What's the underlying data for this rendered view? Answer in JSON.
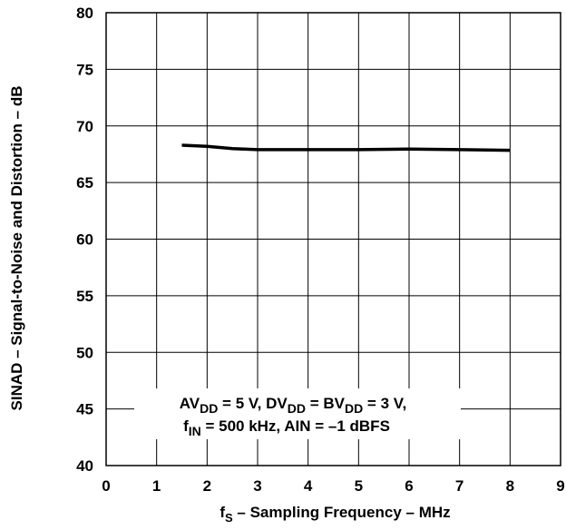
{
  "chart_data": {
    "type": "line",
    "title": "",
    "xlabel": {
      "main": "f",
      "sub": "S",
      "rest": " – Sampling Frequency – MHz"
    },
    "ylabel": "SINAD – Signal-to-Noise and Distortion – dB",
    "xlim": [
      0,
      9
    ],
    "ylim": [
      40,
      80
    ],
    "xticks": [
      "0",
      "1",
      "2",
      "3",
      "4",
      "5",
      "6",
      "7",
      "8",
      "9"
    ],
    "yticks": [
      "40",
      "45",
      "50",
      "55",
      "60",
      "65",
      "70",
      "75",
      "80"
    ],
    "grid": true,
    "series": [
      {
        "x": [
          1.5,
          2,
          2.5,
          3,
          4,
          5,
          6,
          7,
          8
        ],
        "y": [
          68.3,
          68.2,
          68.0,
          67.9,
          67.9,
          67.9,
          67.95,
          67.9,
          67.85
        ]
      }
    ],
    "annotation": {
      "line1": [
        {
          "t": "AV",
          "sub": false
        },
        {
          "t": "DD",
          "sub": true
        },
        {
          "t": " = 5 V, DV",
          "sub": false
        },
        {
          "t": "DD",
          "sub": true
        },
        {
          "t": " = BV",
          "sub": false
        },
        {
          "t": "DD",
          "sub": true
        },
        {
          "t": " = 3 V,",
          "sub": false
        }
      ],
      "line2": [
        {
          "t": "f",
          "sub": false
        },
        {
          "t": "IN",
          "sub": true
        },
        {
          "t": " = 500 kHz, AIN = –1 dBFS",
          "sub": false
        }
      ]
    }
  }
}
